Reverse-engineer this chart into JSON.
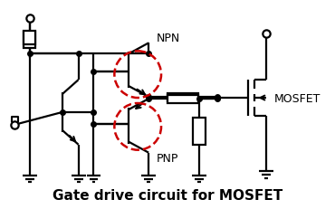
{
  "title": "Gate drive circuit for MOSFET",
  "title_fontsize": 11,
  "title_fontweight": "bold",
  "background_color": "#ffffff",
  "label_npn": "NPN",
  "label_pnp": "PNP",
  "label_mosfet": "MOSFET",
  "figsize": [
    3.7,
    2.32
  ],
  "dpi": 100
}
